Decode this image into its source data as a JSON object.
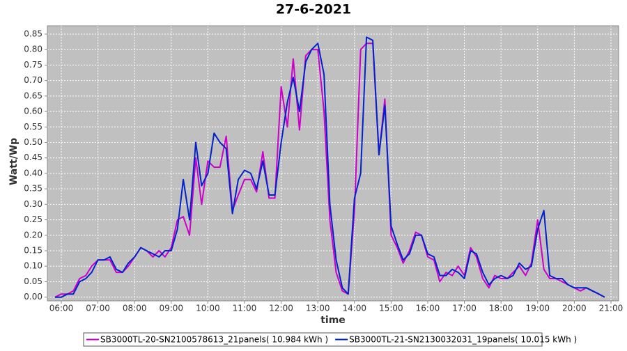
{
  "chart_data": {
    "type": "line",
    "title": "27-6-2021",
    "x_label": "time",
    "y_label": "Watt/Wp",
    "x": [
      5.83,
      6.0,
      6.17,
      6.33,
      6.5,
      6.67,
      6.83,
      7.0,
      7.17,
      7.33,
      7.5,
      7.67,
      7.83,
      8.0,
      8.17,
      8.33,
      8.5,
      8.67,
      8.83,
      9.0,
      9.17,
      9.33,
      9.5,
      9.67,
      9.83,
      10.0,
      10.17,
      10.33,
      10.5,
      10.67,
      10.83,
      11.0,
      11.17,
      11.33,
      11.5,
      11.67,
      11.83,
      12.0,
      12.17,
      12.33,
      12.5,
      12.67,
      12.83,
      13.0,
      13.17,
      13.33,
      13.5,
      13.67,
      13.83,
      14.0,
      14.17,
      14.33,
      14.5,
      14.67,
      14.83,
      15.0,
      15.17,
      15.33,
      15.5,
      15.67,
      15.83,
      16.0,
      16.17,
      16.33,
      16.5,
      16.67,
      16.83,
      17.0,
      17.17,
      17.33,
      17.5,
      17.67,
      17.83,
      18.0,
      18.17,
      18.33,
      18.5,
      18.67,
      18.83,
      19.0,
      19.17,
      19.33,
      19.5,
      19.67,
      19.83,
      20.0,
      20.17,
      20.33,
      20.5,
      20.67,
      20.83
    ],
    "series": [
      {
        "name": "SB3000TL-20-SN2100578613_21panels( 10.984 kWh )",
        "color": "#cc00cc",
        "values": [
          0.0,
          0.01,
          0.01,
          0.02,
          0.06,
          0.07,
          0.1,
          0.12,
          0.12,
          0.12,
          0.08,
          0.08,
          0.1,
          0.13,
          0.16,
          0.15,
          0.13,
          0.15,
          0.13,
          0.16,
          0.25,
          0.26,
          0.2,
          0.45,
          0.3,
          0.44,
          0.42,
          0.42,
          0.52,
          0.28,
          0.33,
          0.38,
          0.38,
          0.34,
          0.47,
          0.32,
          0.32,
          0.68,
          0.55,
          0.77,
          0.54,
          0.78,
          0.8,
          0.8,
          0.6,
          0.25,
          0.08,
          0.02,
          0.01,
          0.28,
          0.8,
          0.82,
          0.82,
          0.46,
          0.64,
          0.2,
          0.16,
          0.11,
          0.15,
          0.21,
          0.2,
          0.13,
          0.12,
          0.05,
          0.08,
          0.07,
          0.1,
          0.07,
          0.16,
          0.13,
          0.06,
          0.03,
          0.07,
          0.06,
          0.06,
          0.08,
          0.1,
          0.07,
          0.11,
          0.25,
          0.09,
          0.06,
          0.06,
          0.05,
          0.04,
          0.03,
          0.02,
          0.03,
          0.02,
          0.01,
          0.0
        ]
      },
      {
        "name": "SB3000TL-21-SN2130032031_19panels( 10.015 kWh )",
        "color": "#0022cc",
        "values": [
          0.0,
          0.0,
          0.01,
          0.01,
          0.05,
          0.06,
          0.08,
          0.12,
          0.12,
          0.13,
          0.09,
          0.08,
          0.11,
          0.13,
          0.16,
          0.15,
          0.14,
          0.13,
          0.15,
          0.15,
          0.22,
          0.38,
          0.25,
          0.5,
          0.36,
          0.4,
          0.53,
          0.5,
          0.48,
          0.27,
          0.38,
          0.41,
          0.4,
          0.35,
          0.44,
          0.33,
          0.33,
          0.5,
          0.63,
          0.71,
          0.6,
          0.76,
          0.8,
          0.82,
          0.72,
          0.3,
          0.12,
          0.03,
          0.01,
          0.32,
          0.4,
          0.84,
          0.83,
          0.46,
          0.62,
          0.23,
          0.17,
          0.12,
          0.14,
          0.2,
          0.2,
          0.14,
          0.13,
          0.07,
          0.07,
          0.09,
          0.08,
          0.06,
          0.15,
          0.14,
          0.08,
          0.04,
          0.06,
          0.07,
          0.06,
          0.07,
          0.11,
          0.09,
          0.1,
          0.22,
          0.28,
          0.07,
          0.06,
          0.06,
          0.04,
          0.03,
          0.03,
          0.03,
          0.02,
          0.01,
          0.0
        ]
      }
    ],
    "xlim": [
      5.62,
      21.21
    ],
    "xticks": [
      {
        "value": 6,
        "label": "06:00"
      },
      {
        "value": 7,
        "label": "07:00"
      },
      {
        "value": 8,
        "label": "08:00"
      },
      {
        "value": 9,
        "label": "09:00"
      },
      {
        "value": 10,
        "label": "10:00"
      },
      {
        "value": 11,
        "label": "11:00"
      },
      {
        "value": 12,
        "label": "12:00"
      },
      {
        "value": 13,
        "label": "13:00"
      },
      {
        "value": 14,
        "label": "14:00"
      },
      {
        "value": 15,
        "label": "15:00"
      },
      {
        "value": 16,
        "label": "16:00"
      },
      {
        "value": 17,
        "label": "17:00"
      },
      {
        "value": 18,
        "label": "18:00"
      },
      {
        "value": 19,
        "label": "19:00"
      },
      {
        "value": 20,
        "label": "20:00"
      },
      {
        "value": 21,
        "label": "21:00"
      }
    ],
    "ylim": [
      -0.012,
      0.877
    ],
    "yticks": [
      {
        "value": 0,
        "label": "0.00"
      },
      0.05,
      {
        "value": 0.1,
        "label": "0.10"
      },
      0.15,
      {
        "value": 0.2,
        "label": "0.20"
      },
      0.25,
      {
        "value": 0.3,
        "label": "0.30"
      },
      0.35,
      {
        "value": 0.4,
        "label": "0.40"
      },
      0.45,
      {
        "value": 0.5,
        "label": "0.50"
      },
      0.55,
      {
        "value": 0.6,
        "label": "0.60"
      },
      0.65,
      {
        "value": 0.7,
        "label": "0.70"
      },
      0.75,
      {
        "value": 0.8,
        "label": "0.80"
      },
      0.85
    ],
    "grid": true
  }
}
